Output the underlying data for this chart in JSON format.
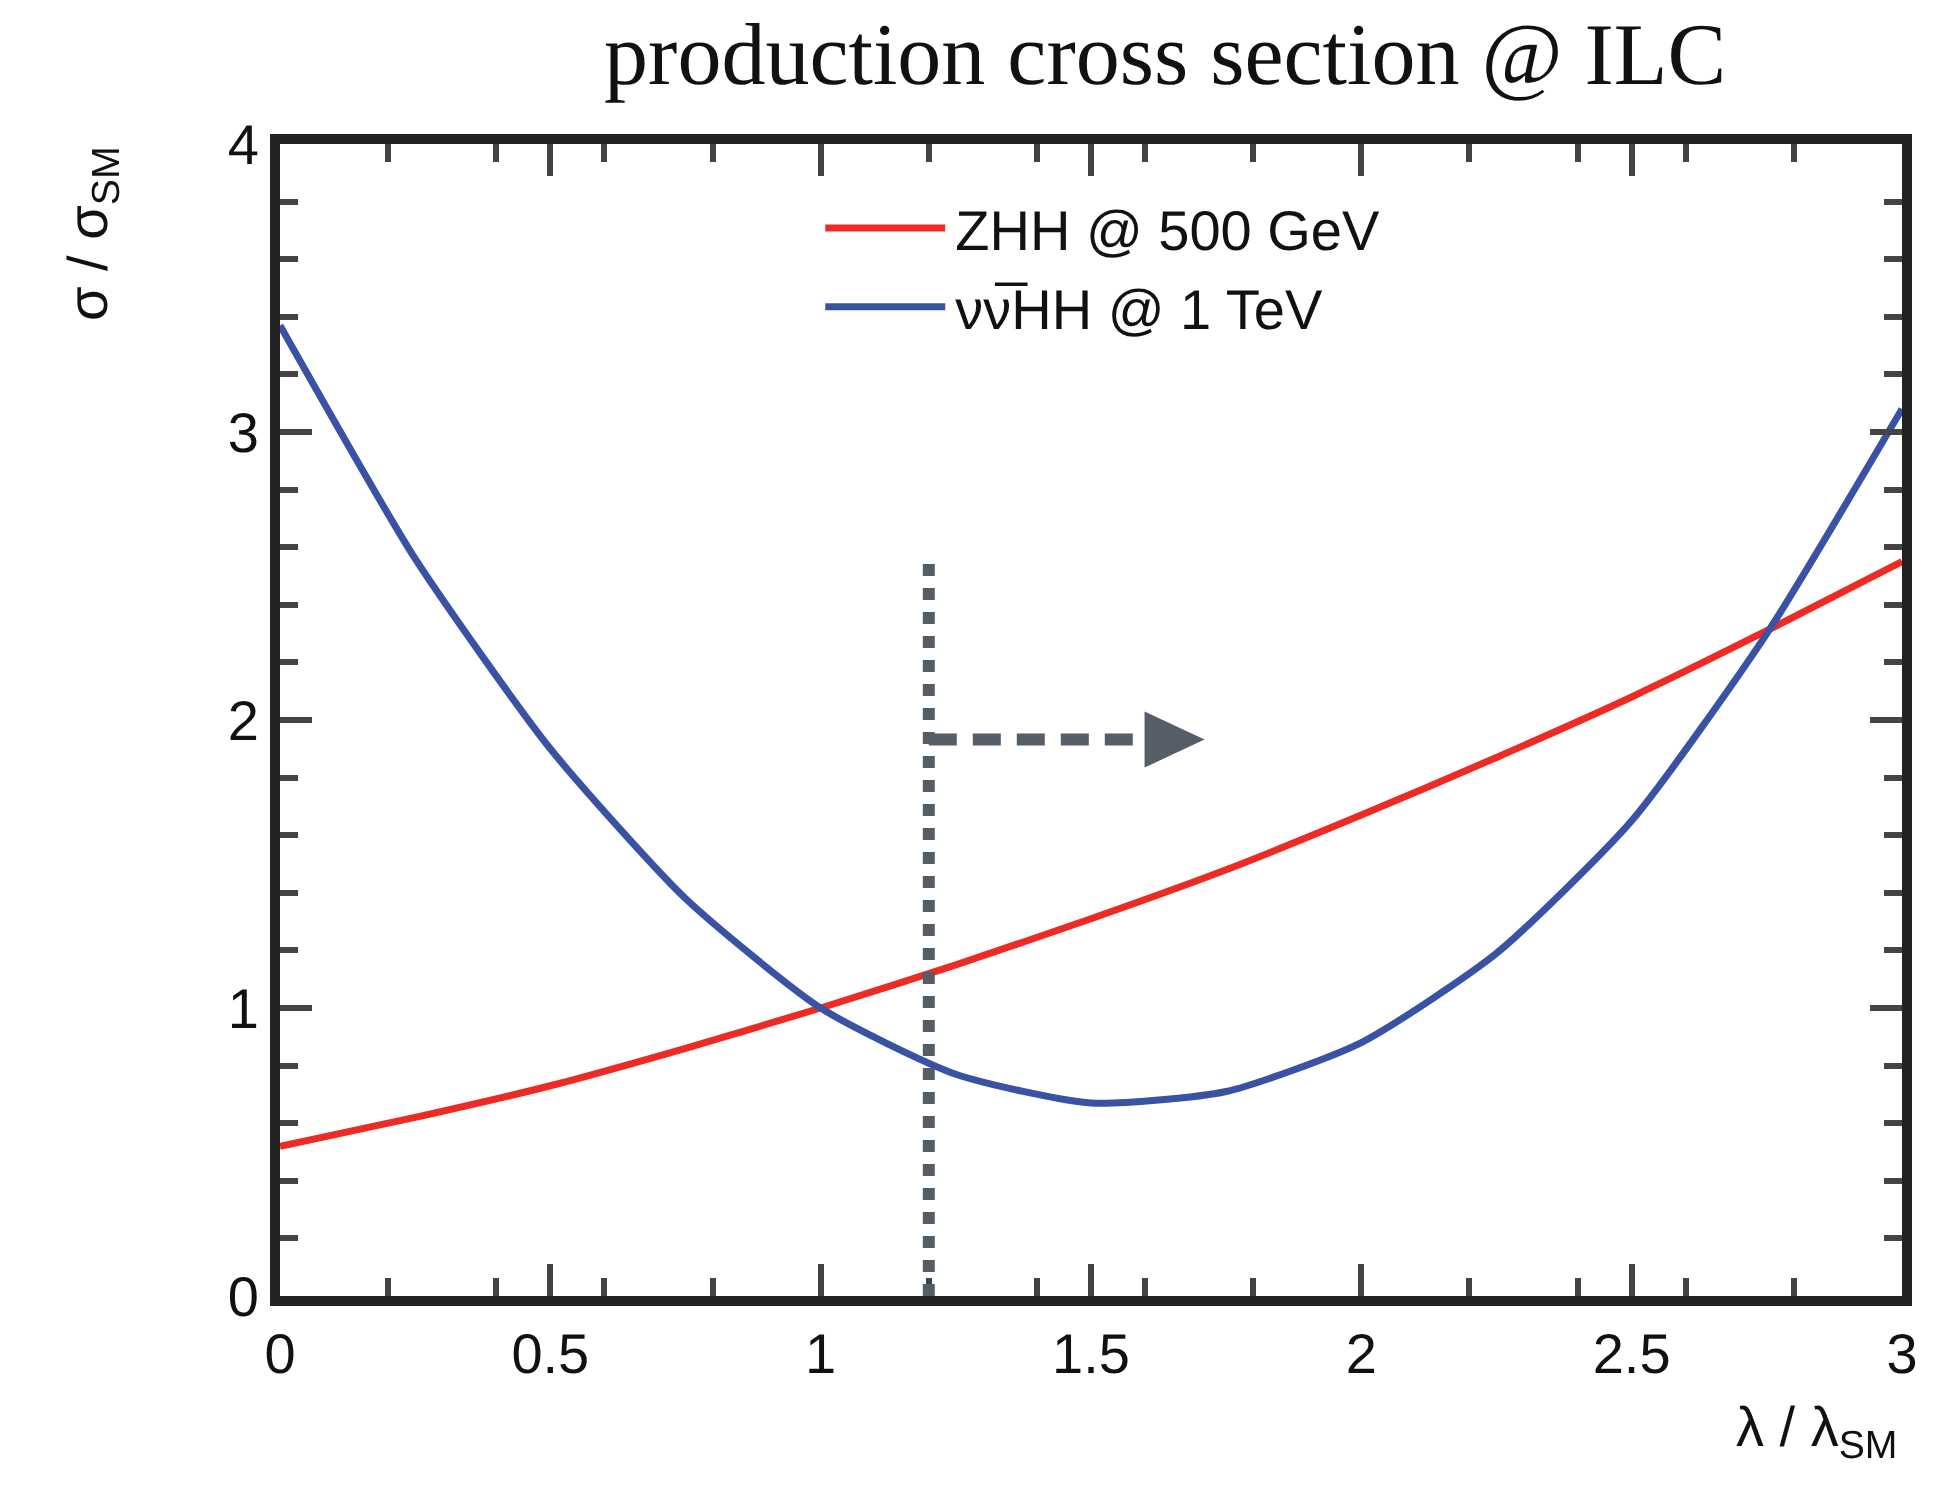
{
  "chart_data": {
    "type": "line",
    "title": "production cross section @ ILC",
    "xlabel": "λ / λ$_{SM}$",
    "ylabel": "σ / σ$_{SM}$",
    "x": [
      0,
      0.25,
      0.5,
      0.75,
      1,
      1.25,
      1.5,
      1.75,
      2,
      2.25,
      2.5,
      2.75,
      3
    ],
    "series": [
      {
        "name": "ZHH @ 500 GeV",
        "color": "#ee2a24",
        "values": [
          0.52,
          0.62,
          0.73,
          0.86,
          1.0,
          1.15,
          1.31,
          1.48,
          1.67,
          1.87,
          2.08,
          2.31,
          2.55
        ]
      },
      {
        "name": "νν̅HH @ 1 TeV",
        "color": "#3a52a4",
        "values": [
          3.37,
          2.56,
          1.9,
          1.38,
          1.0,
          0.77,
          0.67,
          0.71,
          0.88,
          1.19,
          1.65,
          2.3,
          3.08
        ]
      }
    ],
    "xlim": [
      0,
      3
    ],
    "xticks": [
      0,
      0.5,
      1,
      1.5,
      2,
      2.5,
      3
    ],
    "ylim": [
      0,
      4
    ],
    "yticks": [
      0,
      1,
      2,
      3,
      4
    ],
    "ref_lines": [
      {
        "axis": "x",
        "value": 1.2,
        "color": "#555d66",
        "line_style": "dotted"
      }
    ],
    "grid": false,
    "legend": "top",
    "marker": "none",
    "line_style": "solid"
  }
}
